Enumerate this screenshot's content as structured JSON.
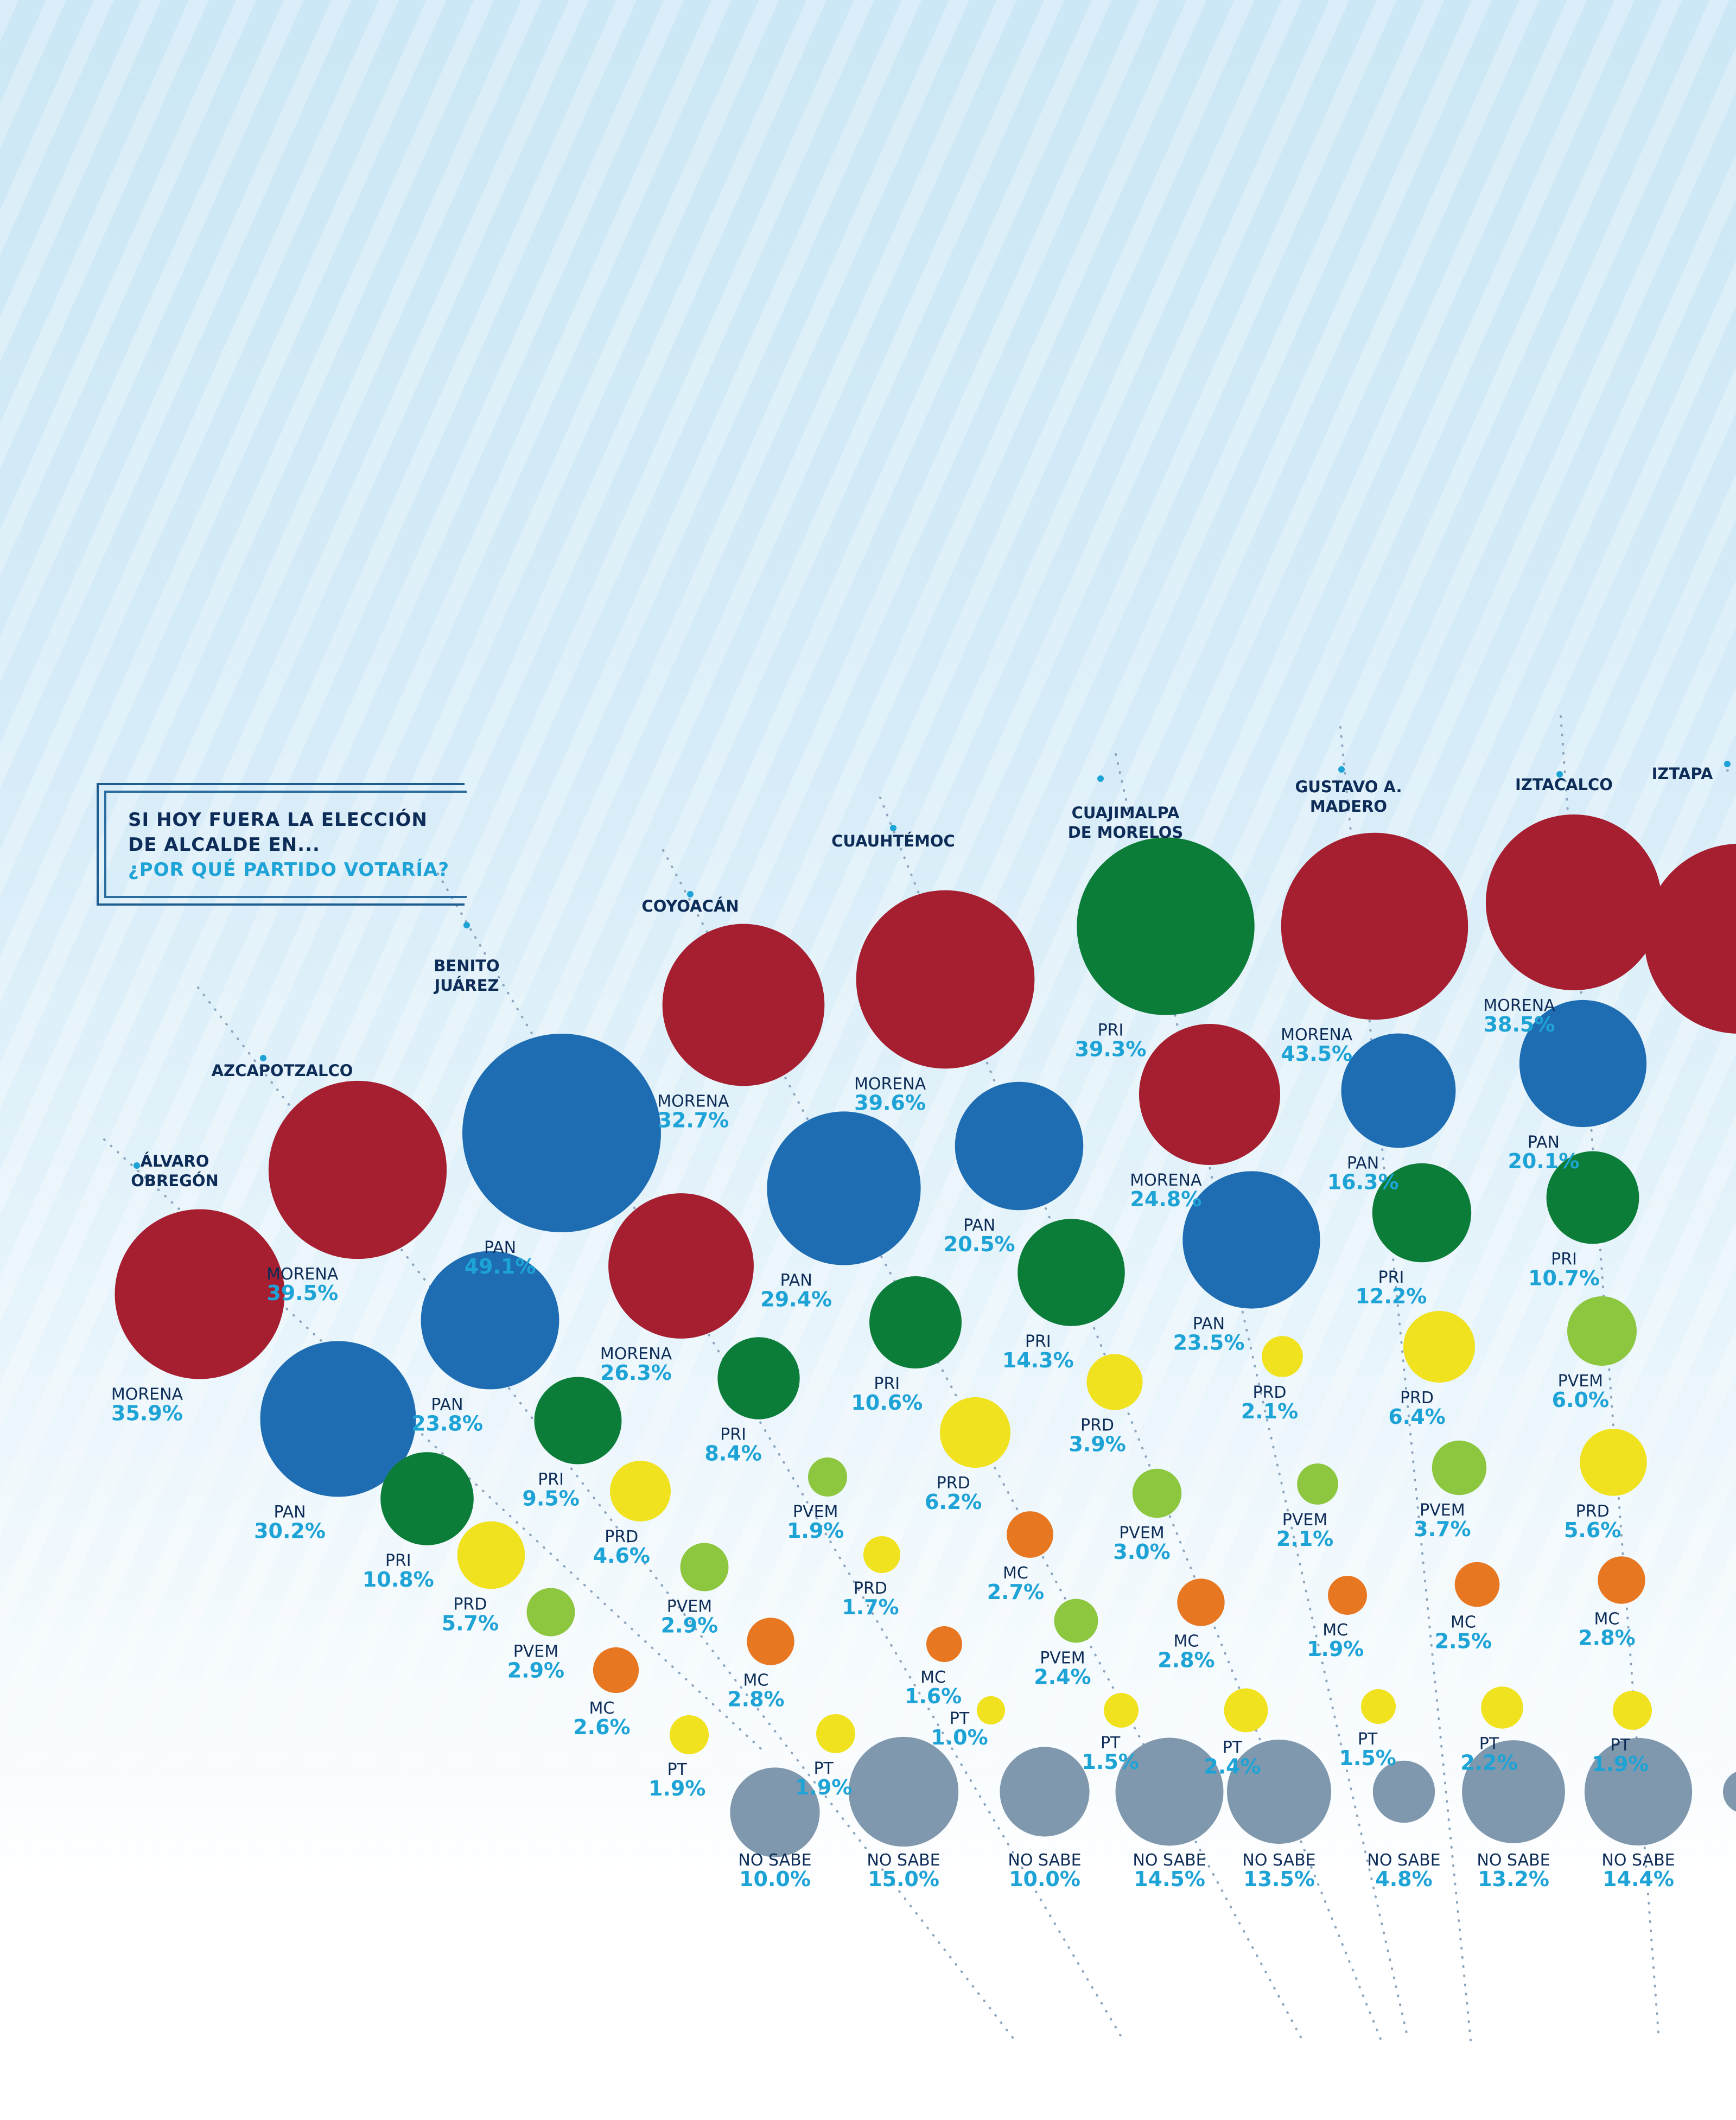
{
  "title": {
    "line1": "SI HOY FUERA LA ELECCIÓN",
    "line2": "DE ALCALDE EN...",
    "line3": "¿POR QUÉ PARTIDO VOTARÍA?"
  },
  "colors": {
    "MORENA": "#a51f30",
    "PAN": "#1e6db3",
    "PRI": "#0c7d38",
    "PRD": "#f0e21e",
    "PVEM": "#8dc63f",
    "MC": "#e87722",
    "PT": "#f0e21e",
    "NO SABE": "#7f98ad",
    "label_name": "#0d2c57",
    "label_value": "#1ea3d6",
    "dotted_line": "#8aa4bd"
  },
  "chart_data": {
    "type": "bubble",
    "series_order": [
      "MORENA",
      "PAN",
      "PRI",
      "PRD",
      "PVEM",
      "MC",
      "PT",
      "NO SABE"
    ],
    "groups": [
      {
        "name": "ÁLVARO\nOBREGÓN",
        "values": [
          {
            "party": "MORENA",
            "label": "35.9%",
            "value": 35.9
          },
          {
            "party": "PAN",
            "label": "30.2%",
            "value": 30.2
          },
          {
            "party": "PRI",
            "label": "10.8%",
            "value": 10.8
          },
          {
            "party": "PRD",
            "label": "5.7%",
            "value": 5.7
          },
          {
            "party": "PVEM",
            "label": "2.9%",
            "value": 2.9
          },
          {
            "party": "MC",
            "label": "2.6%",
            "value": 2.6
          },
          {
            "party": "PT",
            "label": "1.9%",
            "value": 1.9
          },
          {
            "party": "NO SABE",
            "label": "10.0%",
            "value": 10.0
          }
        ]
      },
      {
        "name": "AZCAPOTZALCO",
        "values": [
          {
            "party": "MORENA",
            "label": "39.5%",
            "value": 39.5
          },
          {
            "party": "PAN",
            "label": "23.8%",
            "value": 23.8
          },
          {
            "party": "PRI",
            "label": "9.5%",
            "value": 9.5
          },
          {
            "party": "PRD",
            "label": "4.6%",
            "value": 4.6
          },
          {
            "party": "PVEM",
            "label": "2.9%",
            "value": 2.9
          },
          {
            "party": "MC",
            "label": "2.8%",
            "value": 2.8
          },
          {
            "party": "PT",
            "label": "1.9%",
            "value": 1.9
          },
          {
            "party": "NO SABE",
            "label": "15.0%",
            "value": 15.0
          }
        ]
      },
      {
        "name": "BENITO\nJUÁREZ",
        "values": [
          {
            "party": "PAN",
            "label": "49.1%",
            "value": 49.1
          },
          {
            "party": "MORENA",
            "label": "26.3%",
            "value": 26.3
          },
          {
            "party": "PRI",
            "label": "8.4%",
            "value": 8.4
          },
          {
            "party": "PVEM",
            "label": "1.9%",
            "value": 1.9
          },
          {
            "party": "PRD",
            "label": "1.7%",
            "value": 1.7
          },
          {
            "party": "MC",
            "label": "1.6%",
            "value": 1.6
          },
          {
            "party": "PT",
            "label": "1.0%",
            "value": 1.0
          },
          {
            "party": "NO SABE",
            "label": "10.0%",
            "value": 10.0
          }
        ]
      },
      {
        "name": "COYOACÁN",
        "values": [
          {
            "party": "MORENA",
            "label": "32.7%",
            "value": 32.7
          },
          {
            "party": "PAN",
            "label": "29.4%",
            "value": 29.4
          },
          {
            "party": "PRI",
            "label": "10.6%",
            "value": 10.6
          },
          {
            "party": "PRD",
            "label": "6.2%",
            "value": 6.2
          },
          {
            "party": "MC",
            "label": "2.7%",
            "value": 2.7
          },
          {
            "party": "PVEM",
            "label": "2.4%",
            "value": 2.4
          },
          {
            "party": "PT",
            "label": "1.5%",
            "value": 1.5
          },
          {
            "party": "NO SABE",
            "label": "14.5%",
            "value": 14.5
          }
        ]
      },
      {
        "name": "CUAUHTÉMOC",
        "values": [
          {
            "party": "MORENA",
            "label": "39.6%",
            "value": 39.6
          },
          {
            "party": "PAN",
            "label": "20.5%",
            "value": 20.5
          },
          {
            "party": "PRI",
            "label": "14.3%",
            "value": 14.3
          },
          {
            "party": "PRD",
            "label": "3.9%",
            "value": 3.9
          },
          {
            "party": "PVEM",
            "label": "3.0%",
            "value": 3.0
          },
          {
            "party": "MC",
            "label": "2.8%",
            "value": 2.8
          },
          {
            "party": "PT",
            "label": "2.4%",
            "value": 2.4
          },
          {
            "party": "NO SABE",
            "label": "13.5%",
            "value": 13.5
          }
        ]
      },
      {
        "name": "CUAJIMALPA\nDE MORELOS",
        "values": [
          {
            "party": "PRI",
            "label": "39.3%",
            "value": 39.3
          },
          {
            "party": "MORENA",
            "label": "24.8%",
            "value": 24.8
          },
          {
            "party": "PAN",
            "label": "23.5%",
            "value": 23.5
          },
          {
            "party": "PRD",
            "label": "2.1%",
            "value": 2.1
          },
          {
            "party": "PVEM",
            "label": "2.1%",
            "value": 2.1
          },
          {
            "party": "MC",
            "label": "1.9%",
            "value": 1.9
          },
          {
            "party": "PT",
            "label": "1.5%",
            "value": 1.5
          },
          {
            "party": "NO SABE",
            "label": "4.8%",
            "value": 4.8
          }
        ]
      },
      {
        "name": "GUSTAVO A.\nMADERO",
        "values": [
          {
            "party": "MORENA",
            "label": "43.5%",
            "value": 43.5
          },
          {
            "party": "PAN",
            "label": "16.3%",
            "value": 16.3
          },
          {
            "party": "PRI",
            "label": "12.2%",
            "value": 12.2
          },
          {
            "party": "PRD",
            "label": "6.4%",
            "value": 6.4
          },
          {
            "party": "PVEM",
            "label": "3.7%",
            "value": 3.7
          },
          {
            "party": "MC",
            "label": "2.5%",
            "value": 2.5
          },
          {
            "party": "PT",
            "label": "2.2%",
            "value": 2.2
          },
          {
            "party": "NO SABE",
            "label": "13.2%",
            "value": 13.2
          }
        ]
      },
      {
        "name": "IZTACALCO",
        "values": [
          {
            "party": "MORENA",
            "label": "38.5%",
            "value": 38.5
          },
          {
            "party": "PAN",
            "label": "20.1%",
            "value": 20.1
          },
          {
            "party": "PRI",
            "label": "10.7%",
            "value": 10.7
          },
          {
            "party": "PVEM",
            "label": "6.0%",
            "value": 6.0
          },
          {
            "party": "PRD",
            "label": "5.6%",
            "value": 5.6
          },
          {
            "party": "MC",
            "label": "2.8%",
            "value": 2.8
          },
          {
            "party": "PT",
            "label": "1.9%",
            "value": 1.9
          },
          {
            "party": "NO SABE",
            "label": "14.4%",
            "value": 14.4
          }
        ]
      },
      {
        "name": "IZTAPA",
        "values": [
          {
            "party": "MORENA",
            "label": "",
            "value": null
          },
          {
            "party": "NO SABE",
            "label": "",
            "value": null
          }
        ]
      }
    ]
  }
}
